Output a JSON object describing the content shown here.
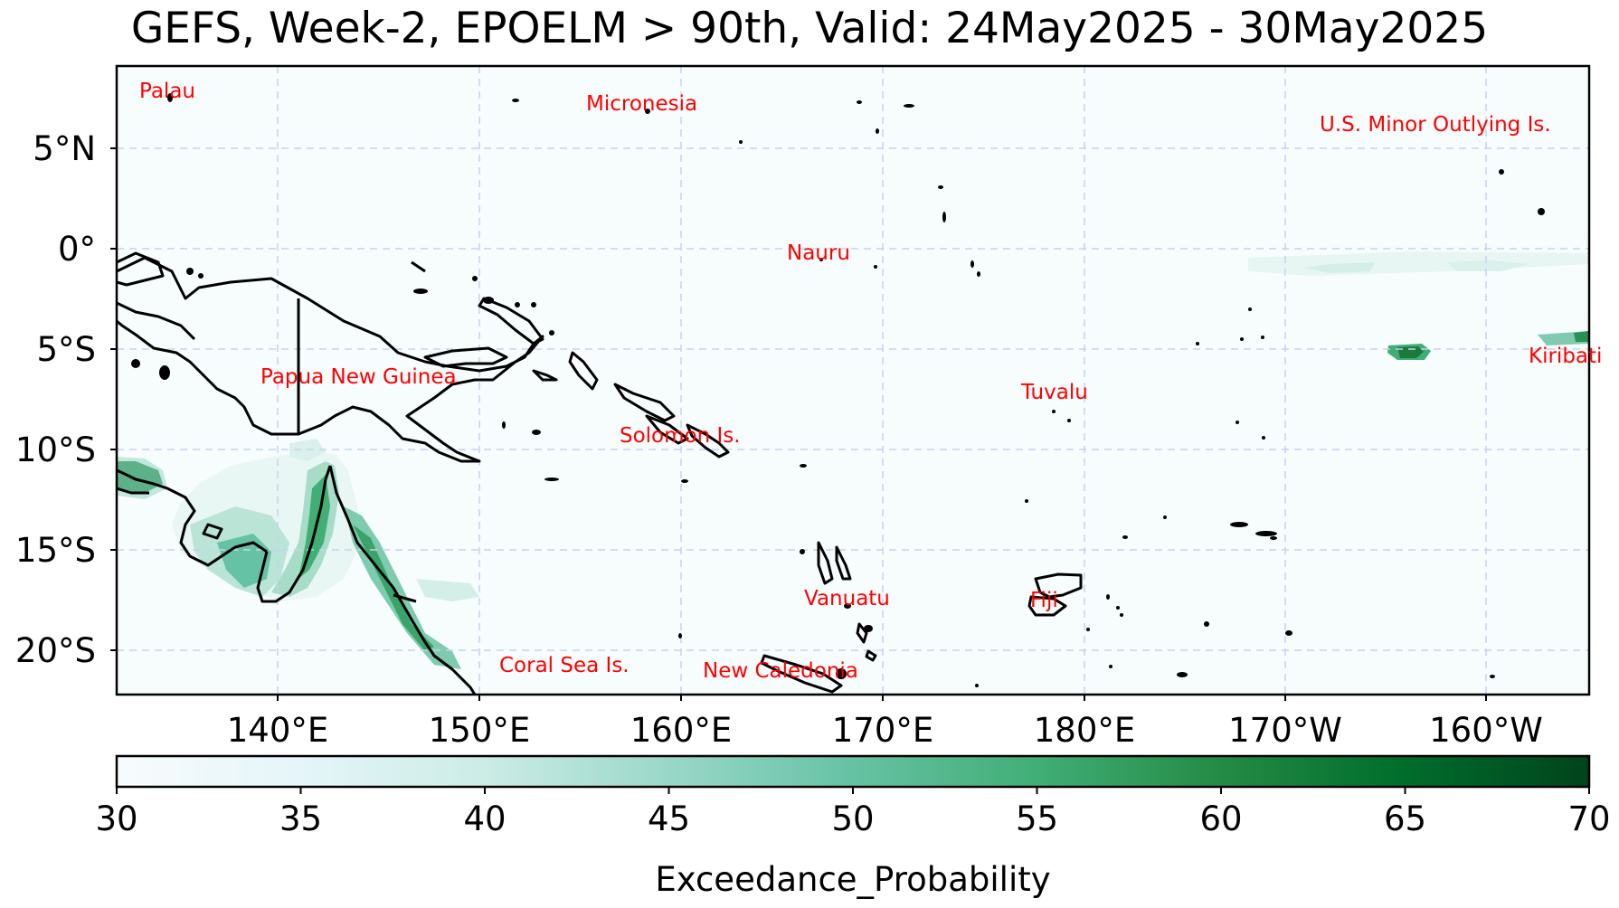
{
  "title": "GEFS, Week-2, EPOELM > 90th, Valid: 24May2025 - 30May2025",
  "map": {
    "lon_range": [
      "132°E",
      "157°W"
    ],
    "lat_range": [
      "22°S",
      "9°N"
    ],
    "lon_ticks": [
      "140°E",
      "150°E",
      "160°E",
      "170°E",
      "180°E",
      "170°W",
      "160°W"
    ],
    "lat_ticks": [
      "5°N",
      "0°",
      "5°S",
      "10°S",
      "15°S",
      "20°S"
    ],
    "gridlines": "dashed",
    "ocean_color": "#f7fcfd",
    "coastline_color": "#000000",
    "label_color": "#ff0000"
  },
  "labels": [
    {
      "name": "palau",
      "text": "Palau"
    },
    {
      "name": "micronesia",
      "text": "Micronesia"
    },
    {
      "name": "us-minor-outlying",
      "text": "U.S. Minor Outlying Is."
    },
    {
      "name": "nauru",
      "text": "Nauru"
    },
    {
      "name": "papua-new-guinea",
      "text": "Papua New Guinea"
    },
    {
      "name": "kiribati",
      "text": "Kiribati"
    },
    {
      "name": "tuvalu",
      "text": "Tuvalu"
    },
    {
      "name": "solomon",
      "text": "Solomon Is."
    },
    {
      "name": "vanuatu",
      "text": "Vanuatu"
    },
    {
      "name": "fiji",
      "text": "Fiji"
    },
    {
      "name": "coral-sea",
      "text": "Coral Sea Is."
    },
    {
      "name": "new-caledonia",
      "text": "New Caledonia"
    }
  ],
  "colorbar": {
    "label": "Exceedance_Probability",
    "ticks": [
      "30",
      "35",
      "40",
      "45",
      "50",
      "55",
      "60",
      "65",
      "70"
    ],
    "min": 30,
    "max": 70,
    "colormap": "BuGn",
    "colors": [
      "#f7fcfd",
      "#e5f5f9",
      "#ccece6",
      "#99d8c9",
      "#66c2a4",
      "#41ae76",
      "#238b45",
      "#006d2c",
      "#00441b"
    ]
  }
}
